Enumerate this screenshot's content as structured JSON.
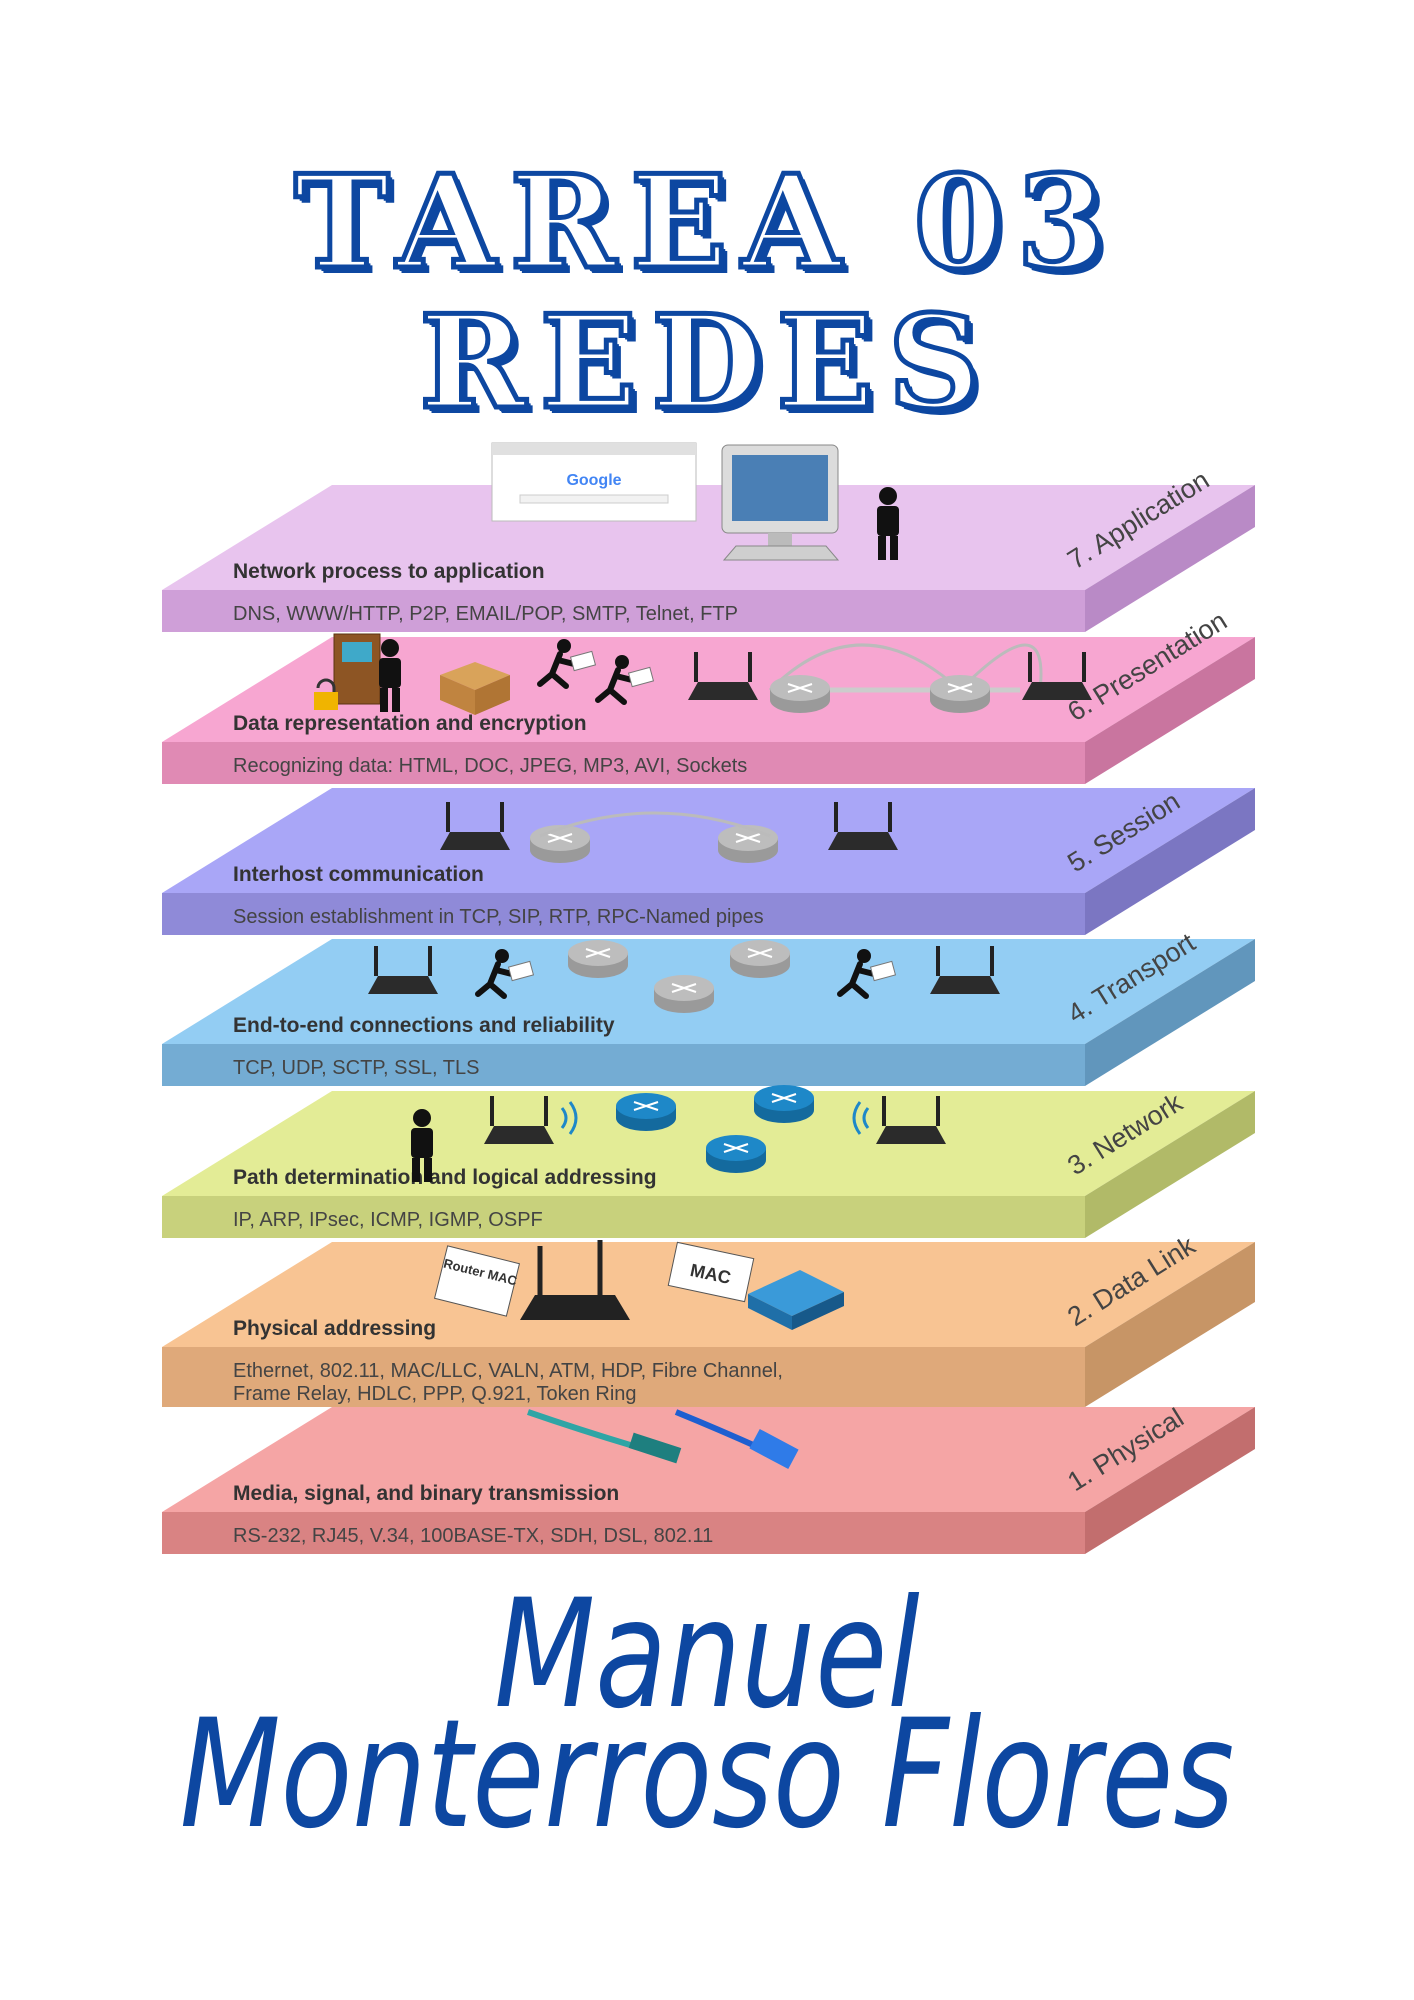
{
  "title": {
    "line1": "TAREA 03",
    "line2": "REDES"
  },
  "author": {
    "line1": "Manuel",
    "line2": "Monterroso Flores"
  },
  "osi_layers": [
    {
      "number_label": "7. Application",
      "heading": "Network process to application",
      "detail": "DNS, WWW/HTTP, P2P, EMAIL/POP, SMTP, Telnet, FTP",
      "detail2": "",
      "top_color": "#e8c4ee",
      "front_color": "#cf9fd8",
      "side_color": "#b98ac6"
    },
    {
      "number_label": "6. Presentation",
      "heading": "Data representation and encryption",
      "detail": "Recognizing data: HTML, DOC, JPEG, MP3, AVI, Sockets",
      "detail2": "",
      "top_color": "#f7a6d1",
      "front_color": "#e08ab4",
      "side_color": "#c9759f"
    },
    {
      "number_label": "5. Session",
      "heading": "Interhost communication",
      "detail": "Session establishment in TCP, SIP, RTP, RPC-Named pipes",
      "detail2": "",
      "top_color": "#a9a6f7",
      "front_color": "#8f8ad8",
      "side_color": "#7b76c2"
    },
    {
      "number_label": "4. Transport",
      "heading": "End-to-end connections and reliability",
      "detail": "TCP, UDP, SCTP, SSL, TLS",
      "detail2": "",
      "top_color": "#93cdf3",
      "front_color": "#74acd3",
      "side_color": "#6196bc"
    },
    {
      "number_label": "3. Network",
      "heading": "Path determination and logical addressing",
      "detail": "IP, ARP, IPsec, ICMP, IGMP, OSPF",
      "detail2": "",
      "top_color": "#e3ec96",
      "front_color": "#c8d17c",
      "side_color": "#b1ba68"
    },
    {
      "number_label": "2. Data Link",
      "heading": "Physical addressing",
      "detail": "Ethernet, 802.11, MAC/LLC, VALN, ATM, HDP, Fibre Channel,",
      "detail2": "Frame Relay, HDLC,  PPP, Q.921, Token Ring",
      "top_color": "#f8c493",
      "front_color": "#dfa97a",
      "side_color": "#c79566"
    },
    {
      "number_label": "1. Physical",
      "heading": "Media, signal, and binary transmission",
      "detail": "RS-232, RJ45, V.34, 100BASE-TX, SDH, DSL, 802.11",
      "detail2": "",
      "top_color": "#f5a5a5",
      "front_color": "#d98383",
      "side_color": "#c26e6e"
    }
  ],
  "illustrations": {
    "browser_logo": "Google",
    "router_tag": "Router MAC",
    "mac_tag": "MAC",
    "icons": [
      "browser-window-icon",
      "desktop-computer-icon",
      "person-with-envelope-icon",
      "bookcase-with-person-icon",
      "padlock-icon",
      "open-box-icon",
      "running-courier-icon",
      "wifi-router-icon",
      "bridge-icon",
      "network-router-icon",
      "flag-person-icon",
      "wireless-signal-icon",
      "network-switch-icon",
      "fiber-cable-icon",
      "ethernet-cable-icon"
    ]
  }
}
